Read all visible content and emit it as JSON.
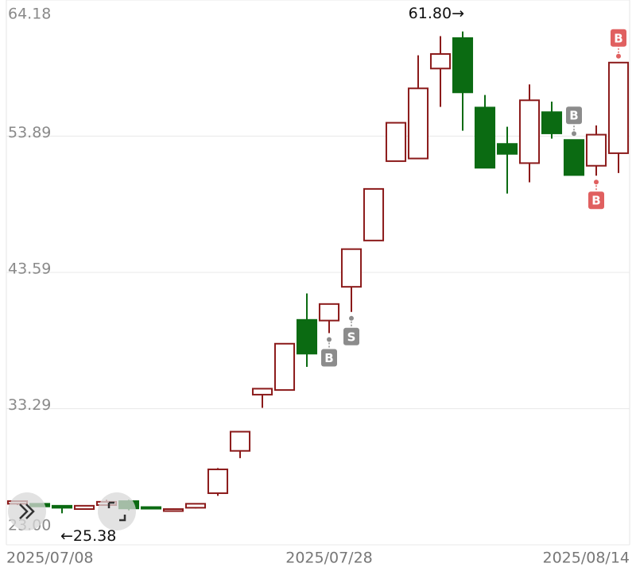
{
  "chart_data": {
    "type": "candlestick",
    "categories": [
      "2025/07/08",
      null,
      null,
      null,
      null,
      null,
      null,
      null,
      null,
      null,
      null,
      null,
      null,
      null,
      "2025/07/28",
      null,
      null,
      null,
      null,
      null,
      null,
      null,
      null,
      null,
      null,
      null,
      null,
      "2025/08/14"
    ],
    "open": [
      26.1,
      26.1,
      25.95,
      25.7,
      26.0,
      26.3,
      25.85,
      25.55,
      25.8,
      26.9,
      30.1,
      34.35,
      34.7,
      40.0,
      39.95,
      42.5,
      46.0,
      52.0,
      52.2,
      59.0,
      61.3,
      56.05,
      53.3,
      51.85,
      55.7,
      53.6,
      51.65,
      52.6
    ],
    "high": [
      26.3,
      26.15,
      26.0,
      25.95,
      26.4,
      26.4,
      25.9,
      25.75,
      26.1,
      28.8,
      31.55,
      34.8,
      38.2,
      42.0,
      41.2,
      45.35,
      49.9,
      54.9,
      60.0,
      61.45,
      61.8,
      57.0,
      54.6,
      57.8,
      56.5,
      53.6,
      54.7,
      59.45
    ],
    "low": [
      26.0,
      25.85,
      25.38,
      25.65,
      25.95,
      25.6,
      25.7,
      25.5,
      25.75,
      26.7,
      29.55,
      33.35,
      34.7,
      36.45,
      39.0,
      40.6,
      46.0,
      52.0,
      52.2,
      56.1,
      54.3,
      51.5,
      49.55,
      50.4,
      53.7,
      50.95,
      50.9,
      51.1
    ],
    "close": [
      26.3,
      25.9,
      25.8,
      25.95,
      26.25,
      25.75,
      25.75,
      25.7,
      26.1,
      28.7,
      31.55,
      34.8,
      38.2,
      37.45,
      41.2,
      45.35,
      49.9,
      54.9,
      57.5,
      60.1,
      57.2,
      51.5,
      52.55,
      56.6,
      54.1,
      50.95,
      54.0,
      59.45
    ],
    "up_color": "#8b1a1a",
    "down_color": "#0b6b12",
    "ylim": [
      23.0,
      64.18
    ],
    "yticks": [
      64.18,
      53.89,
      43.59,
      33.29,
      {
        "value": 23.0,
        "label": "23.00"
      }
    ],
    "grid": true,
    "annotations": [
      {
        "text": "61.80→",
        "at": "max_high"
      },
      {
        "text": "←25.38",
        "at": "min_low"
      }
    ],
    "markers": [
      {
        "index": 14,
        "label": "B",
        "side": "below",
        "color": "#8c8c8c"
      },
      {
        "index": 15,
        "label": "S",
        "side": "below",
        "color": "#8c8c8c"
      },
      {
        "index": 25,
        "label": "B",
        "side": "above",
        "color": "#8c8c8c"
      },
      {
        "index": 26,
        "label": "B",
        "side": "below",
        "color": "#e06060"
      },
      {
        "index": 27,
        "label": "B",
        "side": "above",
        "color": "#e06060"
      }
    ]
  }
}
